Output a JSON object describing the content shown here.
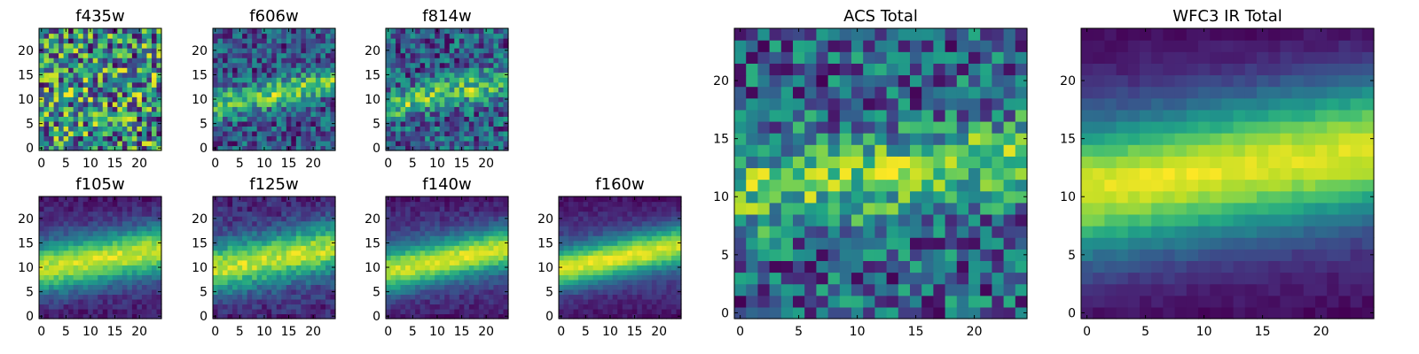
{
  "chart_data": {
    "type": "heatmap",
    "colormap": "viridis",
    "grid_size": 25,
    "axis_range": [
      0,
      24
    ],
    "small_x_ticks": [
      "0",
      "5",
      "10",
      "15",
      "20"
    ],
    "small_y_ticks": [
      "0",
      "5",
      "10",
      "15",
      "20"
    ],
    "large_x_ticks": [
      "0",
      "5",
      "10",
      "15",
      "20"
    ],
    "large_y_ticks": [
      "0",
      "5",
      "10",
      "15",
      "20"
    ],
    "panels": [
      {
        "id": "f435w",
        "title": "f435w",
        "band_strength": 0.05,
        "band_center_at_x0": 8,
        "band_slope": 0.25,
        "band_width": 2.5,
        "noise": 0.55,
        "bg": 0.6,
        "edge_dark": 0.0
      },
      {
        "id": "f606w",
        "title": "f606w",
        "band_strength": 0.5,
        "band_center_at_x0": 8.5,
        "band_slope": 0.22,
        "band_width": 2.0,
        "noise": 0.4,
        "bg": 0.45,
        "edge_dark": 0.0
      },
      {
        "id": "f814w",
        "title": "f814w",
        "band_strength": 0.45,
        "band_center_at_x0": 8.5,
        "band_slope": 0.22,
        "band_width": 2.0,
        "noise": 0.45,
        "bg": 0.45,
        "edge_dark": 0.0
      },
      {
        "id": "f105w",
        "title": "f105w",
        "band_strength": 0.75,
        "band_center_at_x0": 9.5,
        "band_slope": 0.18,
        "band_width": 3.5,
        "noise": 0.12,
        "bg": 0.25,
        "edge_dark": 0.2
      },
      {
        "id": "f125w",
        "title": "f125w",
        "band_strength": 0.65,
        "band_center_at_x0": 9.5,
        "band_slope": 0.2,
        "band_width": 3.5,
        "noise": 0.15,
        "bg": 0.3,
        "edge_dark": 0.15
      },
      {
        "id": "f140w",
        "title": "f140w",
        "band_strength": 0.8,
        "band_center_at_x0": 9.0,
        "band_slope": 0.22,
        "band_width": 3.0,
        "noise": 0.12,
        "bg": 0.15,
        "edge_dark": 0.25
      },
      {
        "id": "f160w",
        "title": "f160w",
        "band_strength": 0.9,
        "band_center_at_x0": 9.5,
        "band_slope": 0.22,
        "band_width": 2.8,
        "noise": 0.1,
        "bg": 0.05,
        "edge_dark": 0.3
      },
      {
        "id": "acs_total",
        "title": "ACS Total",
        "band_strength": 0.3,
        "band_center_at_x0": 10.5,
        "band_slope": 0.12,
        "band_width": 2.5,
        "noise": 0.3,
        "bg": 0.6,
        "edge_dark": 0.0
      },
      {
        "id": "wfc3_total",
        "title": "WFC3 IR Total",
        "band_strength": 0.9,
        "band_center_at_x0": 10.5,
        "band_slope": 0.16,
        "band_width": 4.0,
        "noise": 0.06,
        "bg": 0.05,
        "edge_dark": 0.2
      }
    ]
  }
}
